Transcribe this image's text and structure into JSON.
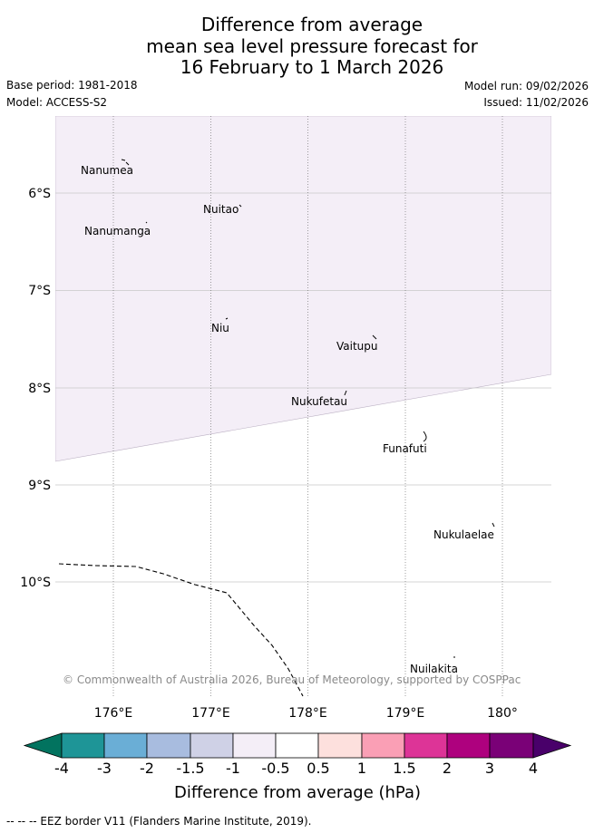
{
  "title": {
    "line1": "Difference from average",
    "line2": "mean sea level pressure forecast for",
    "line3": "16 February to 1 March 2026"
  },
  "meta": {
    "base_period": "Base period: 1981-2018",
    "model": "Model: ACCESS-S2",
    "model_run": "Model run: 09/02/2026",
    "issued": "Issued: 11/02/2026"
  },
  "map": {
    "lat_labels": [
      "6°S",
      "7°S",
      "8°S",
      "9°S",
      "10°S"
    ],
    "lon_labels": [
      "176°E",
      "177°E",
      "178°E",
      "179°E",
      "180°"
    ],
    "shaded_region_value_hpa": "-1 to -0.5",
    "islands": [
      {
        "name": "Nanumea"
      },
      {
        "name": "Nuitao"
      },
      {
        "name": "Nanumanga"
      },
      {
        "name": "Niu"
      },
      {
        "name": "Vaitupu"
      },
      {
        "name": "Nukufetau"
      },
      {
        "name": "Funafuti"
      },
      {
        "name": "Nukulaelae"
      },
      {
        "name": "Nuilakita"
      }
    ],
    "copyright": "© Commonwealth of Australia 2026, Bureau of Meteorology, supported by COSPPac"
  },
  "colorbar": {
    "ticks": [
      "-4",
      "-3",
      "-2",
      "-1.5",
      "-1",
      "-0.5",
      "0.5",
      "1",
      "1.5",
      "2",
      "3",
      "4"
    ],
    "colors": [
      "#02735f",
      "#1e9597",
      "#6aaed6",
      "#a8bcdf",
      "#cfd1e6",
      "#f4eef7",
      "#ffffff",
      "#fde0dd",
      "#fa9fb5",
      "#dd3497",
      "#ae017e",
      "#7a0177",
      "#49006a"
    ],
    "label": "Difference from average (hPa)"
  },
  "footer": "--  --  -- EEZ border V11 (Flanders Marine Institute, 2019)."
}
